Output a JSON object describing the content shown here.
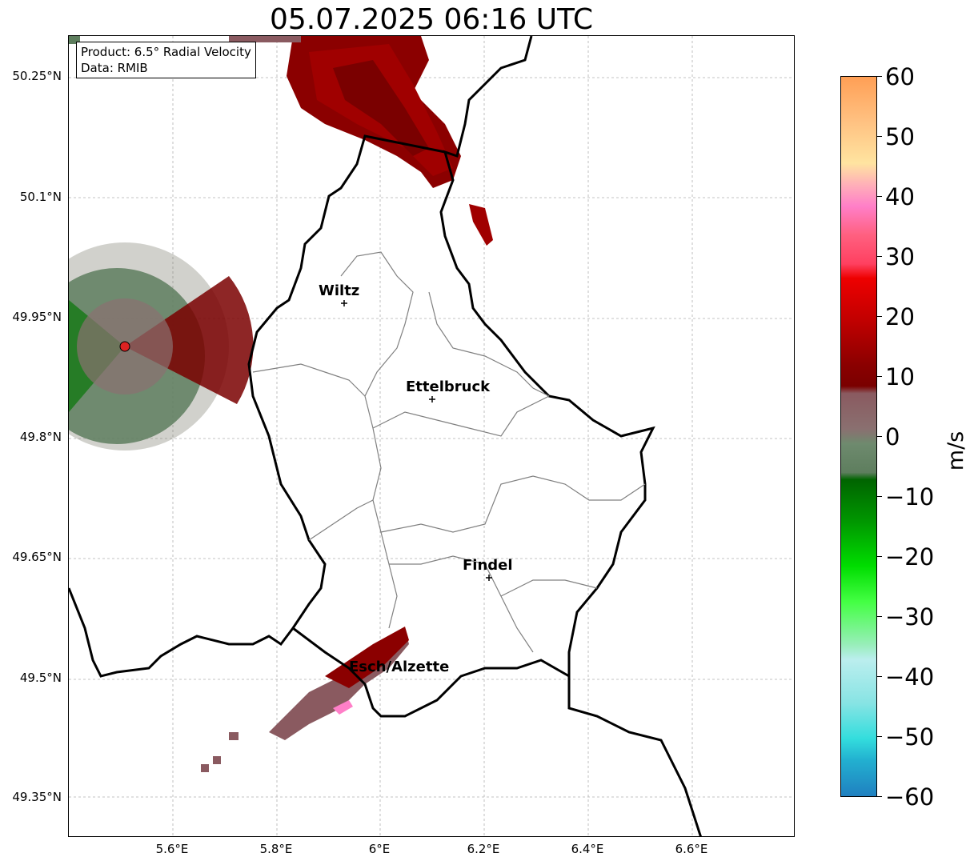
{
  "title": "05.07.2025 06:16 UTC",
  "info": {
    "product": "Product: 6.5° Radial Velocity",
    "data": "Data: RMIB"
  },
  "axes": {
    "lat_labels": [
      "50.25°N",
      "50.1°N",
      "49.95°N",
      "49.8°N",
      "49.65°N",
      "49.5°N",
      "49.35°N"
    ],
    "lon_labels": [
      "5.6°E",
      "5.8°E",
      "6°E",
      "6.2°E",
      "6.4°E",
      "6.6°E"
    ]
  },
  "cities": [
    {
      "name": "Wiltz"
    },
    {
      "name": "Ettelbruck"
    },
    {
      "name": "Findel"
    },
    {
      "name": "Esch/Alzette"
    }
  ],
  "colorbar": {
    "unit": "m/s",
    "ticks": [
      "60",
      "50",
      "40",
      "30",
      "20",
      "10",
      "0",
      "−10",
      "−20",
      "−30",
      "−40",
      "−50",
      "−60"
    ],
    "range": [
      -60,
      60
    ],
    "colors": {
      "orange": "#ff9f55",
      "pink": "#ff7fc8",
      "red": "#ee0000",
      "darkred": "#7a0000",
      "gray_red": "#8a5a60",
      "gray_green": "#5e7e5e",
      "green": "#00aa00",
      "lightgreen": "#44ff44",
      "cyan": "#33dddd",
      "blue": "#2080c0"
    }
  },
  "colors": {
    "border": "#000000",
    "canton_lines": "#808080",
    "grid": "#b0b0b0",
    "radar_site": "#dd2222"
  }
}
